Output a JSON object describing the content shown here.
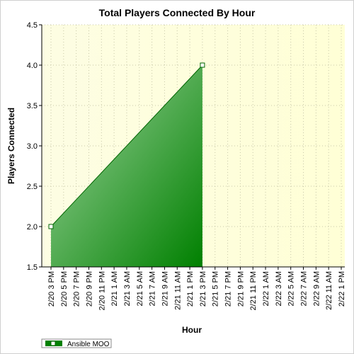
{
  "chart_data": {
    "type": "area",
    "title": "Total Players Connected By Hour",
    "xlabel": "Hour",
    "ylabel": "Players Connected",
    "ylim": [
      1.5,
      4.5
    ],
    "yticks": [
      "1.5",
      "2.0",
      "2.5",
      "3.0",
      "3.5",
      "4.0",
      "4.5"
    ],
    "categories": [
      "2/20 3 PM",
      "2/20 5 PM",
      "2/20 7 PM",
      "2/20 9 PM",
      "2/20 11 PM",
      "2/21 1 AM",
      "2/21 3 AM",
      "2/21 5 AM",
      "2/21 7 AM",
      "2/21 9 AM",
      "2/21 11 AM",
      "2/21 1 PM",
      "2/21 3 PM",
      "2/21 5 PM",
      "2/21 7 PM",
      "2/21 9 PM",
      "2/21 11 PM",
      "2/22 1 AM",
      "2/22 3 AM",
      "2/22 5 AM",
      "2/22 7 AM",
      "2/22 9 AM",
      "2/22 11 AM",
      "2/22 1 PM"
    ],
    "series": [
      {
        "name": "Ansible MOO",
        "x": [
          "2/20 3 PM",
          "2/21 3 PM"
        ],
        "values": [
          2.0,
          4.0
        ]
      }
    ],
    "grid": true,
    "legend": "bottom-left",
    "colors": {
      "plot_background_start": "#fdfde3",
      "plot_background_end": "#ffffd6",
      "area_light": "#a3d6a3",
      "area_dark": "#008000",
      "line": "#006400",
      "grid": "#c8c8a8"
    }
  }
}
